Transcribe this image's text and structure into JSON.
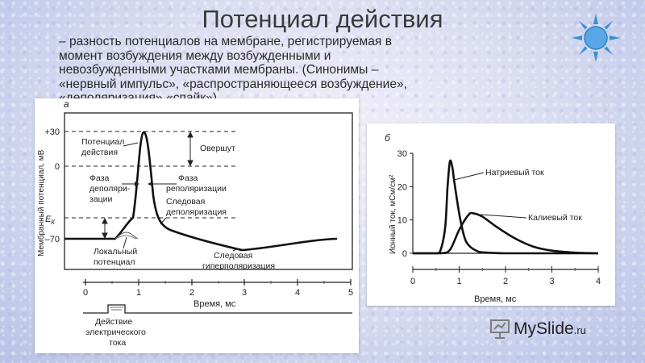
{
  "slide": {
    "title": "Потенциал действия",
    "subtitle": "– разность потенциалов на мембране, регистрируемая в момент возбуждения между возбужденными и невозбужденными участками мембраны. (Синонимы – «нервный импульс», «распространяющееся возбуждение», «деполяризация»,«спайк»).",
    "watermark": "MySlide",
    "watermark_suffix": ".ru",
    "accent_color": "#3a8fd6"
  },
  "figure_a": {
    "panel_label": "а",
    "y_axis_label": "Мембранный потенциал, мВ",
    "y_ticks": {
      "plus30": "+30",
      "zero": "0",
      "ek_main": "E",
      "ek_sub": "К",
      "minus70": "–70"
    },
    "x_axis_label": "Время, мс",
    "x_ticks": [
      "0",
      "1",
      "2",
      "3",
      "4",
      "5"
    ],
    "annotations": {
      "peak_line1": "Потенциал",
      "peak_line2": "действия",
      "overshoot": "Овершут",
      "depol_line1": "Фаза",
      "depol_line2": "деполяри-",
      "depol_line3": "зации",
      "repol_line1": "Фаза",
      "repol_line2": "реполяризации",
      "trace_depol_line1": "Следовая",
      "trace_depol_line2": "деполяризация",
      "trace_hyper_line1": "Следовая",
      "trace_hyper_line2": "гиперполяризация",
      "local_line1": "Локальный",
      "local_line2": "потенциал",
      "stimulus_line1": "Действие",
      "stimulus_line2": "электрического",
      "stimulus_line3": "тока"
    }
  },
  "figure_b": {
    "panel_label": "б",
    "y_axis_label": "Ионный ток, мСм/см²",
    "y_ticks": [
      "0",
      "10",
      "20",
      "30"
    ],
    "x_axis_label": "Время, мс",
    "x_ticks": [
      "0",
      "1",
      "2",
      "3",
      "4"
    ],
    "sodium_label": "Натриевый ток",
    "potassium_label": "Калиевый ток"
  },
  "chart_data": {
    "type": "line",
    "title": "",
    "xlabel": "Время, мс",
    "ylabel": "Ионный ток, мСм/см²",
    "xlim": [
      0,
      4
    ],
    "ylim": [
      0,
      30
    ],
    "series": [
      {
        "name": "Натриевый ток",
        "x": [
          0,
          0.5,
          0.6,
          0.7,
          0.75,
          0.8,
          0.85,
          0.9,
          1.0,
          1.1,
          1.2,
          1.4,
          1.6,
          2.0,
          2.5,
          4.0
        ],
        "values": [
          0,
          0,
          1,
          8,
          20,
          27.5,
          26,
          21,
          12,
          5.5,
          2.5,
          0.6,
          0.2,
          0,
          0,
          0
        ]
      },
      {
        "name": "Калиевый ток",
        "x": [
          0,
          0.6,
          0.8,
          1.0,
          1.2,
          1.3,
          1.5,
          1.8,
          2.2,
          2.6,
          3.0,
          3.5,
          4.0
        ],
        "values": [
          0,
          0,
          1,
          7,
          11.5,
          12,
          11,
          8,
          4.5,
          2,
          0.8,
          0.2,
          0
        ]
      }
    ]
  }
}
